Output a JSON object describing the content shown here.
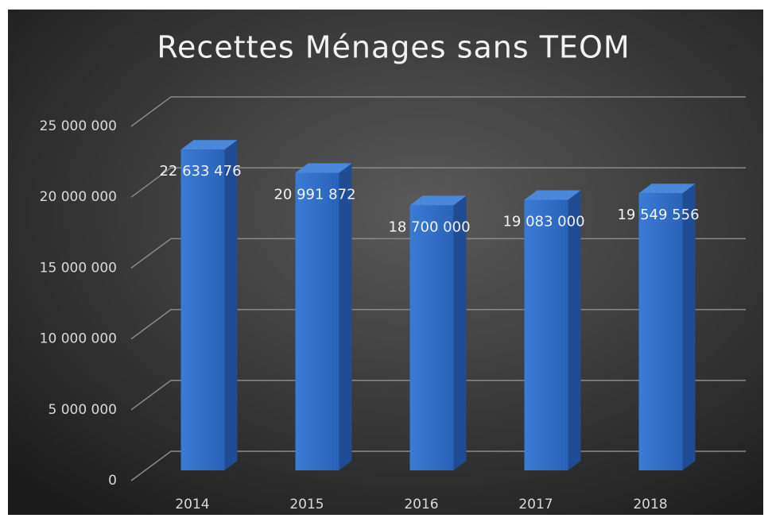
{
  "chart_data": {
    "type": "bar3d",
    "title": "Recettes Ménages sans TEOM",
    "categories": [
      "2014",
      "2015",
      "2016",
      "2017",
      "2018"
    ],
    "values": [
      22633476,
      20991872,
      18700000,
      19083000,
      19549556
    ],
    "value_labels": [
      "22 633 476",
      "20 991 872",
      "18 700 000",
      "19 083 000",
      "19 549 556"
    ],
    "color": "#2f6fc8",
    "ylim": [
      0,
      25000000
    ],
    "yticks": [
      0,
      {
        "value": 5000000,
        "label": "5 000 000"
      },
      {
        "value": 10000000,
        "label": "10 000 000"
      },
      {
        "value": 15000000,
        "label": "15 000 000"
      },
      {
        "value": 20000000,
        "label": "20 000 000"
      },
      {
        "value": 25000000,
        "label": "25 000 000"
      }
    ],
    "grid": true
  }
}
